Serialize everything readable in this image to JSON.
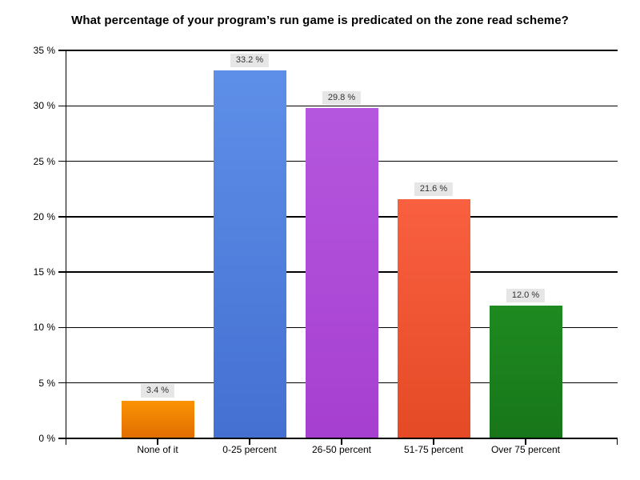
{
  "chart_data": {
    "type": "bar",
    "title": "What percentage of your program’s run game is predicated on the zone read scheme?",
    "categories": [
      "None of it",
      "0-25 percent",
      "26-50 percent",
      "51-75 percent",
      "Over 75 percent"
    ],
    "values": [
      3.4,
      33.2,
      29.8,
      21.6,
      12.0
    ],
    "value_labels": [
      "3.4 %",
      "33.2 %",
      "29.8 %",
      "21.6 %",
      "12.0 %"
    ],
    "xlabel": "",
    "ylabel": "",
    "ylim": [
      0,
      35
    ],
    "ytick_step": 5,
    "ytick_labels": [
      "0 %",
      "5 %",
      "10 %",
      "15 %",
      "20 %",
      "25 %",
      "30 %",
      "35 %"
    ],
    "grid": true,
    "legend": "none",
    "colors": [
      {
        "top": "#FB9305",
        "bottom": "#E06D00"
      },
      {
        "top": "#5E8FE8",
        "bottom": "#4470D2"
      },
      {
        "top": "#B557DE",
        "bottom": "#A63FD0"
      },
      {
        "top": "#F96040",
        "bottom": "#E54A26"
      },
      {
        "top": "#1F8A20",
        "bottom": "#17761A"
      }
    ],
    "value_label_bg": "#E6E6E6",
    "value_label_color": "#333333",
    "axis_color": "#000000",
    "background": "#FFFFFF"
  }
}
